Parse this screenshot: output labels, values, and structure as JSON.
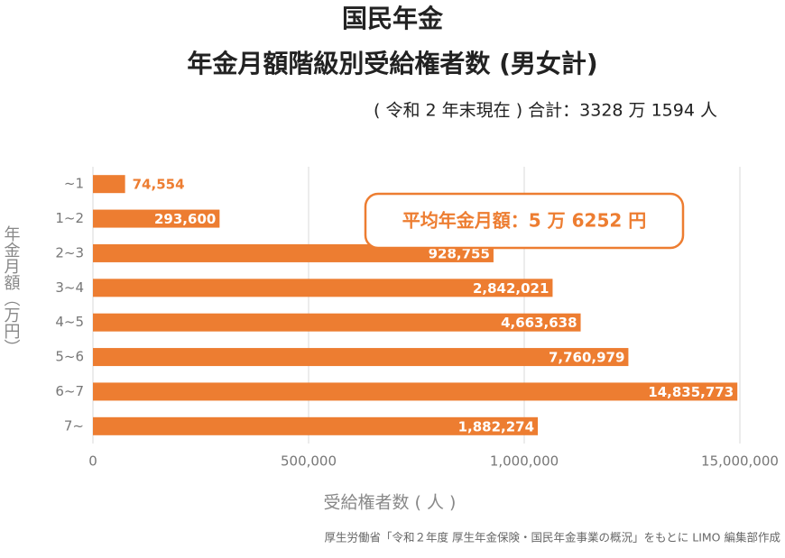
{
  "chart_data": {
    "type": "bar",
    "orientation": "horizontal",
    "title": "国民年金",
    "subtitle": "年金月額階級別受給権者数 (男女計)",
    "note": "( 令和 2 年末現在 ) 合計：3328 万 1594 人",
    "annotation": "平均年金月額：5 万 6252 円",
    "x_label": "受給権者数 ( 人 )",
    "y_label": "年金月額（万円）",
    "source": "厚生労働省「令和２年度 厚生年金保険・国民年金事業の概況」をもとに LIMO 編集部作成",
    "categories": [
      "~1",
      "1~2",
      "2~3",
      "3~4",
      "4~5",
      "5~6",
      "6~7",
      "7~"
    ],
    "values": [
      74554,
      293600,
      928755,
      2842021,
      4663638,
      7760979,
      14835773,
      1882274
    ],
    "value_labels": [
      "74,554",
      "293,600",
      "928,755",
      "2,842,021",
      "4,663,638",
      "7,760,979",
      "14,835,773",
      "1,882,274"
    ],
    "color": "#ed7d31",
    "xlim": [
      0,
      15000000
    ],
    "xticks": [
      0,
      {
        "value": 500000,
        "label": "500,000"
      },
      {
        "value": 1000000,
        "label": "1,000,000"
      },
      {
        "value": 15000000,
        "label": "15,000,000"
      }
    ],
    "grid": true
  }
}
